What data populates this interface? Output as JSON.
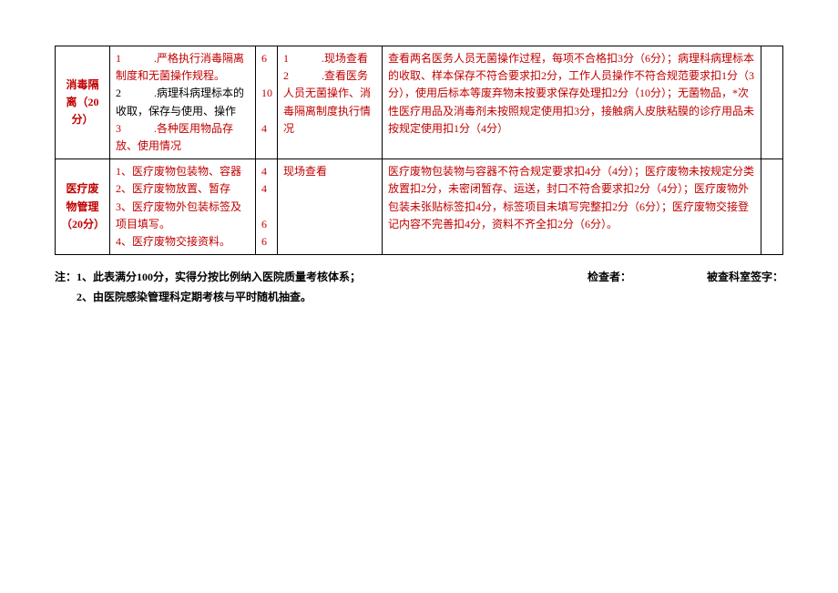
{
  "colors": {
    "text_red": "#c00000",
    "text_black": "#000000",
    "border": "#000000",
    "background": "#ffffff"
  },
  "typography": {
    "font_family": "SimSun",
    "font_size_pt": 9,
    "line_height": 1.6
  },
  "rows": [
    {
      "category": "消毒隔离（20分）",
      "category_color": "red",
      "content_lines": [
        {
          "text": "1　　　.严格执行消毒隔离制度和无菌操作规程。",
          "color": "red"
        },
        {
          "text": "2　　　.病理科病理标本的收取，保存与使用、操作",
          "color": "black"
        },
        {
          "text": "3　　　.各种医用物品存放、使用情况",
          "color": "red"
        }
      ],
      "scores": [
        "6",
        "",
        "10",
        "",
        "4"
      ],
      "score_colors": [
        "red",
        "",
        "red",
        "",
        "red"
      ],
      "method_lines": [
        {
          "text": "1　　　.现场查看",
          "color": "red"
        },
        {
          "text": "2　　　.查看医务人员无菌操作、消毒隔离制度执行情况",
          "color": "red"
        }
      ],
      "criteria": "查看两名医务人员无菌操作过程，每项不合格扣3分（6分）；病理科病理标本的收取、样本保存不符合要求扣2分，工作人员操作不符合规范要求扣1分（3分），使用后标本等废弃物未按要求保存处理扣2分（10分）；无菌物品，*次性医疗用品及消毒剂未按照规定使用扣3分，接触病人皮肤粘膜的诊疗用品未按规定使用扣1分（4分）",
      "criteria_color": "red",
      "end": ""
    },
    {
      "category": "医疗废物管理（20分）",
      "category_color": "red",
      "content_lines": [
        {
          "text": "1、医疗废物包装物、容器",
          "color": "red"
        },
        {
          "text": "2、医疗废物放置、暂存",
          "color": "red"
        },
        {
          "text": "3、医疗废物外包装标签及项目填写。",
          "color": "red"
        },
        {
          "text": "4、医疗废物交接资料。",
          "color": "red"
        }
      ],
      "scores": [
        "4",
        "4",
        "",
        "6",
        "6"
      ],
      "score_colors": [
        "red",
        "red",
        "",
        "red",
        "red"
      ],
      "method_lines": [
        {
          "text": "现场查看",
          "color": "red"
        }
      ],
      "criteria": "医疗废物包装物与容器不符合规定要求扣4分（4分）；医疗废物未按规定分类放置扣2分，未密闭暂存、运送，封口不符合要求扣2分（4分）；医疗废物外包装未张贴标签扣4分，标签项目未填写完整扣2分（6分）；医疗废物交接登记内容不完善扣4分，资料不齐全扣2分（6分）。",
      "criteria_color": "red",
      "end": ""
    }
  ],
  "notes": {
    "line1_left": "注：1、此表满分100分，实得分按比例纳入医院质量考核体系；",
    "line1_mid": "检查者：",
    "line1_right": "被查科室签字：",
    "line2": "　　2、由医院感染管理科定期考核与平时随机抽查。"
  }
}
